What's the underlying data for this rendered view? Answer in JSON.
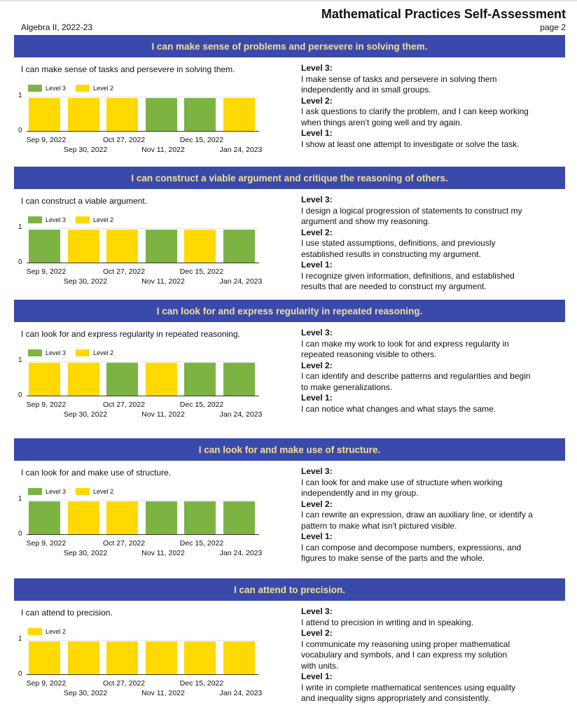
{
  "header": {
    "title": "Mathematical Practices Self-Assessment",
    "course": "Algebra II, 2022-23",
    "page": "page 2"
  },
  "colors": {
    "band": "#3a4aaa",
    "band_text": "#f5df9a",
    "level3": "#7cb342",
    "level2": "#ffd900"
  },
  "dates_row1": [
    "Sep 9, 2022",
    "Oct 27, 2022",
    "Dec 15, 2022"
  ],
  "dates_row2": [
    "Sep 30, 2022",
    "Nov 11, 2022",
    "Jan 24, 2023"
  ],
  "sections": [
    {
      "heading": "I can make sense of problems and persevere in solving them.",
      "statement": "I can make sense of tasks and persevere in solving them.",
      "legend": [
        "Level 3",
        "Level 2"
      ],
      "chart_data": {
        "type": "bar",
        "categories": [
          "Sep 9, 2022",
          "Sep 30, 2022",
          "Oct 27, 2022",
          "Nov 11, 2022",
          "Dec 15, 2022",
          "Jan 24, 2023"
        ],
        "values": [
          1,
          1,
          1,
          1,
          1,
          1
        ],
        "levels": [
          "Level 2",
          "Level 2",
          "Level 2",
          "Level 3",
          "Level 3",
          "Level 2"
        ],
        "yticks": [
          "0",
          "1"
        ],
        "ylim": [
          0,
          1
        ]
      },
      "levels": [
        {
          "label": "Level 3:",
          "text": [
            "I make sense of tasks and persevere in solving them",
            "independently and in small groups."
          ]
        },
        {
          "label": "Level 2:",
          "text": [
            "I ask questions to clarify the problem, and I can keep working",
            "when things aren’t going well and try again."
          ]
        },
        {
          "label": "Level 1:",
          "text": [
            "I show at least one attempt to investigate or solve the task."
          ]
        }
      ]
    },
    {
      "heading": "I can construct a viable argument and critique the reasoning of others.",
      "statement": "I can construct a viable argument.",
      "legend": [
        "Level 3",
        "Level 2"
      ],
      "chart_data": {
        "type": "bar",
        "categories": [
          "Sep 9, 2022",
          "Sep 30, 2022",
          "Oct 27, 2022",
          "Nov 11, 2022",
          "Dec 15, 2022",
          "Jan 24, 2023"
        ],
        "values": [
          1,
          1,
          1,
          1,
          1,
          1
        ],
        "levels": [
          "Level 3",
          "Level 2",
          "Level 2",
          "Level 3",
          "Level 2",
          "Level 3"
        ],
        "yticks": [
          "0",
          "1"
        ],
        "ylim": [
          0,
          1
        ]
      },
      "levels": [
        {
          "label": "Level 3:",
          "text": [
            "I design a logical progression of statements to construct my",
            "argument and show my reasoning."
          ]
        },
        {
          "label": "Level 2:",
          "text": [
            "I use stated assumptions, definitions, and previously",
            "established results in constructing my argument."
          ]
        },
        {
          "label": "Level 1:",
          "text": [
            "I recognize given information, definitions, and established",
            "results that are needed to construct my argument."
          ]
        }
      ]
    },
    {
      "heading": "I can look for and express regularity in repeated reasoning.",
      "statement": "I can look for and express regularity in repeated reasoning.",
      "legend": [
        "Level 3",
        "Level 2"
      ],
      "chart_data": {
        "type": "bar",
        "categories": [
          "Sep 9, 2022",
          "Sep 30, 2022",
          "Oct 27, 2022",
          "Nov 11, 2022",
          "Dec 15, 2022",
          "Jan 24, 2023"
        ],
        "values": [
          1,
          1,
          1,
          1,
          1,
          1
        ],
        "levels": [
          "Level 2",
          "Level 2",
          "Level 3",
          "Level 2",
          "Level 3",
          "Level 3"
        ],
        "yticks": [
          "0",
          "1"
        ],
        "ylim": [
          0,
          1
        ]
      },
      "levels": [
        {
          "label": "Level 3:",
          "text": [
            "I can make my work to look for and express regularity in",
            "repeated reasoning visible to others."
          ]
        },
        {
          "label": "Level 2:",
          "text": [
            "I can identify and describe patterns and regularities and begin",
            "to make generalizations."
          ]
        },
        {
          "label": "Level 1:",
          "text": [
            "I can notice what changes and what stays the same."
          ]
        }
      ]
    },
    {
      "heading": "I can look for and make use of structure.",
      "statement": "I can look for and make use of structure.",
      "legend": [
        "Level 3",
        "Level 2"
      ],
      "chart_data": {
        "type": "bar",
        "categories": [
          "Sep 9, 2022",
          "Sep 30, 2022",
          "Oct 27, 2022",
          "Nov 11, 2022",
          "Dec 15, 2022",
          "Jan 24, 2023"
        ],
        "values": [
          1,
          1,
          1,
          1,
          1,
          1
        ],
        "levels": [
          "Level 3",
          "Level 2",
          "Level 2",
          "Level 3",
          "Level 3",
          "Level 3"
        ],
        "yticks": [
          "0",
          "1"
        ],
        "ylim": [
          0,
          1
        ]
      },
      "levels": [
        {
          "label": "Level 3:",
          "text": [
            "I can look for and make use of structure when working",
            "independently and in my group."
          ]
        },
        {
          "label": "Level 2:",
          "text": [
            "I can rewrite an expression, draw an auxiliary line, or identify a",
            "pattern to make what isn't pictured visible."
          ]
        },
        {
          "label": "Level 1:",
          "text": [
            "I can compose and decompose numbers, expressions, and",
            "figures to make sense of the parts and the whole."
          ]
        }
      ]
    },
    {
      "heading": "I can attend to precision.",
      "statement": "I can attend to precision.",
      "legend": [
        "Level 2"
      ],
      "chart_data": {
        "type": "bar",
        "categories": [
          "Sep 9, 2022",
          "Sep 30, 2022",
          "Oct 27, 2022",
          "Nov 11, 2022",
          "Dec 15, 2022",
          "Jan 24, 2023"
        ],
        "values": [
          1,
          1,
          1,
          1,
          1,
          1
        ],
        "levels": [
          "Level 2",
          "Level 2",
          "Level 2",
          "Level 2",
          "Level 2",
          "Level 2"
        ],
        "yticks": [
          "0",
          "1"
        ],
        "ylim": [
          0,
          1
        ]
      },
      "levels": [
        {
          "label": "Level 3:",
          "text": [
            "I attend to precision in writing and in speaking."
          ]
        },
        {
          "label": "Level 2:",
          "text": [
            "I communicate my reasoning using proper mathematical",
            "vocabulary and symbols, and I can express my solution",
            "with units."
          ]
        },
        {
          "label": "Level 1:",
          "text": [
            "I write in complete mathematical sentences using equality",
            "and inequality signs appropriately and consistently."
          ]
        }
      ]
    }
  ]
}
